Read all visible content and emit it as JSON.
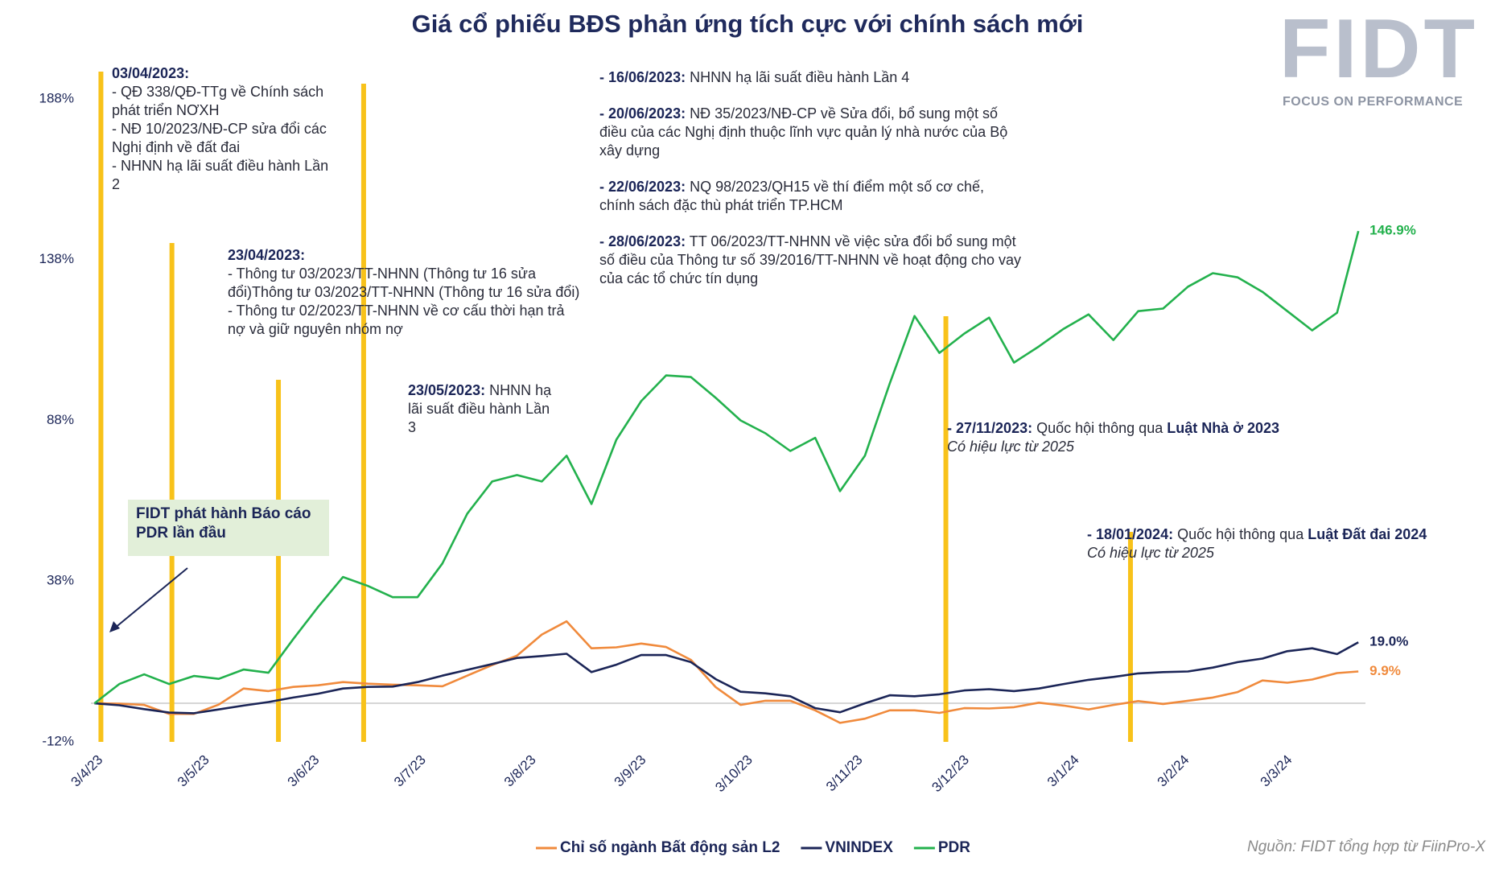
{
  "chart_data": {
    "type": "line",
    "title": "Giá cổ phiếu BĐS phản ứng tích cực với chính sách mới",
    "logo": {
      "mark": "FIDT",
      "tagline": "FOCUS ON PERFORMANCE"
    },
    "source": "Nguồn: FIDT tổng hợp từ FiinPro-X",
    "x": [
      "2023-04-03",
      "2023-04-10",
      "2023-04-17",
      "2023-04-24",
      "2023-05-01",
      "2023-05-08",
      "2023-05-15",
      "2023-05-22",
      "2023-05-29",
      "2023-06-05",
      "2023-06-12",
      "2023-06-19",
      "2023-06-26",
      "2023-07-03",
      "2023-07-10",
      "2023-07-17",
      "2023-07-24",
      "2023-07-31",
      "2023-08-07",
      "2023-08-14",
      "2023-08-21",
      "2023-08-28",
      "2023-09-04",
      "2023-09-11",
      "2023-09-18",
      "2023-09-25",
      "2023-10-02",
      "2023-10-09",
      "2023-10-16",
      "2023-10-23",
      "2023-10-30",
      "2023-11-06",
      "2023-11-13",
      "2023-11-20",
      "2023-11-27",
      "2023-12-04",
      "2023-12-11",
      "2023-12-18",
      "2023-12-25",
      "2024-01-01",
      "2024-01-08",
      "2024-01-15",
      "2024-01-22",
      "2024-01-29",
      "2024-02-05",
      "2024-02-12",
      "2024-02-19",
      "2024-02-26",
      "2024-03-04",
      "2024-03-11",
      "2024-03-18",
      "2024-03-24"
    ],
    "series": [
      {
        "name": "Chỉ số ngành Bất động sản L2",
        "color": "#f08a3c",
        "last_label": "9.9%",
        "values": [
          0,
          -0.1,
          -0.5,
          -3.3,
          -3.3,
          -0.4,
          4.6,
          3.8,
          5.1,
          5.6,
          6.6,
          6.1,
          5.8,
          5.6,
          5.3,
          8.6,
          11.9,
          14.8,
          21.4,
          25.5,
          17.1,
          17.4,
          18.6,
          17.5,
          13.5,
          5,
          -0.5,
          0.8,
          0.8,
          -2.2,
          -6.1,
          -4.8,
          -2.2,
          -2.2,
          -3,
          -1.5,
          -1.6,
          -1.2,
          0.2,
          -0.7,
          -1.9,
          -0.5,
          0.7,
          -0.2,
          0.8,
          1.8,
          3.5,
          7.1,
          6.4,
          7.4,
          9.4,
          9.9
        ]
      },
      {
        "name": "VNINDEX",
        "color": "#1b2557",
        "last_label": "19.0%",
        "values": [
          0,
          -0.6,
          -1.8,
          -2.9,
          -3.1,
          -1.9,
          -0.7,
          0.4,
          1.8,
          3,
          4.6,
          5.1,
          5.2,
          6.6,
          8.6,
          10.4,
          12.2,
          14.1,
          14.7,
          15.4,
          9.7,
          12,
          15,
          15,
          12.8,
          7.5,
          3.6,
          3.1,
          2.2,
          -1.5,
          -2.8,
          0,
          2.5,
          2.2,
          2.8,
          4,
          4.4,
          3.8,
          4.6,
          6,
          7.3,
          8.2,
          9.3,
          9.7,
          9.9,
          11.1,
          12.8,
          13.9,
          16.2,
          17.1,
          15.3,
          19.0
        ]
      },
      {
        "name": "PDR",
        "color": "#23b14d",
        "last_label": "146.9%",
        "values": [
          0,
          6,
          9,
          6,
          8.5,
          7.6,
          10.5,
          9.5,
          20,
          30,
          39.3,
          36.5,
          33,
          33,
          43.5,
          59,
          69,
          71,
          69,
          77,
          62,
          82,
          94,
          102,
          101.5,
          95,
          88,
          84,
          78.5,
          82.6,
          66,
          77,
          99.5,
          120.5,
          109,
          115,
          120,
          106,
          111,
          116.5,
          121,
          113,
          122,
          122.8,
          129.6,
          133.8,
          132.5,
          128,
          122,
          116,
          121.5,
          146.9
        ]
      }
    ],
    "xlim": [
      "2023-04-02",
      "2024-03-26"
    ],
    "xticks": [
      {
        "value": "2023-04-03",
        "label": "3/4/23"
      },
      {
        "value": "2023-05-03",
        "label": "3/5/23"
      },
      {
        "value": "2023-06-03",
        "label": "3/6/23"
      },
      {
        "value": "2023-07-03",
        "label": "3/7/23"
      },
      {
        "value": "2023-08-03",
        "label": "3/8/23"
      },
      {
        "value": "2023-09-03",
        "label": "3/9/23"
      },
      {
        "value": "2023-10-03",
        "label": "3/10/23"
      },
      {
        "value": "2023-11-03",
        "label": "3/11/23"
      },
      {
        "value": "2023-12-03",
        "label": "3/12/23"
      },
      {
        "value": "2024-01-03",
        "label": "3/1/24"
      },
      {
        "value": "2024-02-03",
        "label": "3/2/24"
      },
      {
        "value": "2024-03-03",
        "label": "3/3/24"
      }
    ],
    "ylim": [
      -12,
      188
    ],
    "yticks": [
      {
        "value": -12,
        "label": "-12%"
      },
      {
        "value": 38,
        "label": "38%"
      },
      {
        "value": 88,
        "label": "88%"
      },
      {
        "value": 138,
        "label": "138%"
      },
      {
        "value": 188,
        "label": "188%"
      }
    ],
    "grid": false,
    "legend": "bottom",
    "marker_color": "#f8c21a",
    "note": "FIDT phát hành Báo cáo PDR lần đầu",
    "annotations": [
      {
        "x": "2023-04-03",
        "paragraphs": [
          [
            {
              "text": "03/04/2023:",
              "style": "bold"
            }
          ],
          [
            {
              "text": "- QĐ 338/QĐ-TTg về Chính sách phát triển NƠXH"
            }
          ],
          [
            {
              "text": "- NĐ 10/2023/NĐ-CP sửa đổi các Nghị định về đất đai"
            }
          ],
          [
            {
              "text": "- NHNN hạ lãi suất điều hành Lần 2"
            }
          ]
        ]
      },
      {
        "x": "2023-04-23",
        "paragraphs": [
          [
            {
              "text": "23/04/2023:",
              "style": "bold"
            }
          ],
          [
            {
              "text": "- Thông tư 03/2023/TT-NHNN (Thông tư 16 sửa đổi)Thông tư 03/2023/TT-NHNN (Thông tư 16 sửa đổi)"
            }
          ],
          [
            {
              "text": "- Thông tư 02/2023/TT-NHNN về cơ cấu thời hạn trả nợ và giữ nguyên nhóm nợ"
            }
          ]
        ]
      },
      {
        "x": "2023-05-23",
        "paragraphs": [
          [
            {
              "text": "23/05/2023:",
              "style": "bold"
            },
            {
              "text": " NHNN hạ lãi suất điều hành Lần 3"
            }
          ]
        ]
      },
      {
        "x": "2023-06-16",
        "paragraphs": [
          [
            {
              "text": "- 16/06/2023:",
              "style": "bold"
            },
            {
              "text": " NHNN hạ lãi suất điều hành Lần 4"
            }
          ],
          [
            {
              "text": "- 20/06/2023:",
              "style": "bold"
            },
            {
              "text": " NĐ 35/2023/NĐ-CP về Sửa đổi, bổ sung một số điều của các Nghị định thuộc lĩnh vực quản lý nhà nước của Bộ xây dựng"
            }
          ],
          [
            {
              "text": "- 22/06/2023:",
              "style": "bold"
            },
            {
              "text": " NQ 98/2023/QH15 về thí điểm một số cơ chế, chính sách đặc thù phát triển TP.HCM"
            }
          ],
          [
            {
              "text": "- 28/06/2023:",
              "style": "bold"
            },
            {
              "text": " TT 06/2023/TT-NHNN về việc sửa đổi bổ sung một số điều của Thông tư số 39/2016/TT-NHNN về hoạt động cho vay của các tổ chức tín dụng"
            }
          ]
        ]
      },
      {
        "x": "2023-11-27",
        "paragraphs": [
          [
            {
              "text": "- 27/11/2023:",
              "style": "bold"
            },
            {
              "text": " Quốc hội thông qua "
            },
            {
              "text": "Luật Nhà ở 2023",
              "style": "bold"
            }
          ],
          [
            {
              "text": "Có hiệu lực từ 2025",
              "style": "italic"
            }
          ]
        ]
      },
      {
        "x": "2024-01-18",
        "paragraphs": [
          [
            {
              "text": "- 18/01/2024:",
              "style": "bold"
            },
            {
              "text": " Quốc hội thông qua "
            },
            {
              "text": "Luật Đất đai 2024",
              "style": "bold"
            }
          ],
          [
            {
              "text": "Có hiệu lực từ 2025",
              "style": "italic"
            }
          ]
        ]
      }
    ]
  }
}
